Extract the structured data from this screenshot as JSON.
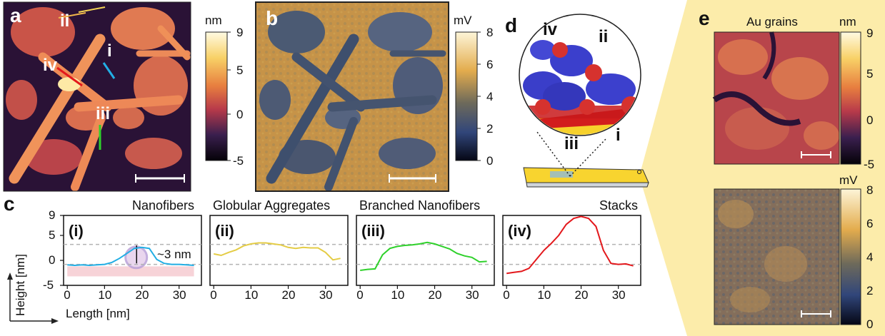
{
  "panels": {
    "a": {
      "letter": "a",
      "line_labels": [
        "ii",
        "i",
        "iv",
        "iii"
      ],
      "colorbar": {
        "unit": "nm",
        "ticks": [
          "9",
          "5",
          "0",
          "-5"
        ]
      }
    },
    "b": {
      "letter": "b",
      "colorbar": {
        "unit": "mV",
        "ticks": [
          "8",
          "6",
          "4",
          "2",
          "0"
        ]
      }
    },
    "c": {
      "letter": "c",
      "ylabel": "Height [nm]",
      "xlabel": "Length [nm]",
      "y_ticks": [
        "9",
        "5",
        "0",
        "-5"
      ],
      "x_ticks": [
        "0",
        "10",
        "20",
        "30"
      ],
      "annotation": "~3 nm",
      "plots": [
        {
          "roman": "(i)",
          "title": "Nanofibers"
        },
        {
          "roman": "(ii)",
          "title": "Globular Aggregates"
        },
        {
          "roman": "(iii)",
          "title": "Branched Nanofibers"
        },
        {
          "roman": "(iv)",
          "title": "Stacks"
        }
      ]
    },
    "d": {
      "letter": "d",
      "labels": [
        "iv",
        "ii",
        "iii",
        "i"
      ]
    },
    "e": {
      "letter": "e",
      "title": "Au grains",
      "colorbar_top": {
        "unit": "nm",
        "ticks": [
          "9",
          "5",
          "0",
          "-5"
        ]
      },
      "colorbar_bottom": {
        "unit": "mV",
        "ticks": [
          "8",
          "6",
          "4",
          "2",
          "0"
        ]
      }
    }
  },
  "colors": {
    "profile_i": "#22aee4",
    "profile_ii": "#e4cc45",
    "profile_iii": "#2fd12b",
    "profile_iv": "#e3181c",
    "inset_background": "#fbe9a8",
    "gold_substrate": "#f6cd2c",
    "frame_red": "#d6322e",
    "frame_blue": "#3a3ec9"
  },
  "chart_data": [
    {
      "type": "line",
      "title": "Nanofibers",
      "xlabel": "Length [nm]",
      "ylabel": "Height [nm]",
      "xlim": [
        -1,
        36
      ],
      "ylim": [
        -5,
        9
      ],
      "reference_lines": [
        -0.8,
        3.2
      ],
      "x": [
        0,
        2,
        4,
        6,
        8,
        10,
        12,
        14,
        16,
        18,
        20,
        22,
        24,
        26,
        28,
        30,
        32,
        34
      ],
      "y": [
        -0.9,
        -1.0,
        -0.9,
        -1.0,
        -0.9,
        -0.8,
        -0.4,
        0.4,
        1.4,
        2.4,
        2.6,
        2.4,
        0.2,
        -0.6,
        -0.8,
        -0.8,
        -0.9,
        -1.0
      ]
    },
    {
      "type": "line",
      "title": "Globular Aggregates",
      "xlabel": "",
      "ylabel": "",
      "xlim": [
        -1,
        36
      ],
      "ylim": [
        -5,
        9
      ],
      "reference_lines": [
        -0.8,
        3.2
      ],
      "x": [
        0,
        2,
        4,
        6,
        8,
        10,
        12,
        14,
        16,
        18,
        20,
        22,
        24,
        26,
        28,
        30,
        32,
        34
      ],
      "y": [
        1.3,
        1.0,
        1.6,
        2.1,
        2.9,
        3.3,
        3.5,
        3.5,
        3.3,
        3.1,
        2.6,
        2.4,
        2.6,
        2.5,
        2.5,
        1.6,
        0.1,
        0.4
      ]
    },
    {
      "type": "line",
      "title": "Branched Nanofibers",
      "xlabel": "",
      "ylabel": "",
      "xlim": [
        -1,
        36
      ],
      "ylim": [
        -5,
        9
      ],
      "reference_lines": [
        -0.8,
        3.2
      ],
      "x": [
        0,
        2,
        4,
        6,
        8,
        10,
        12,
        14,
        16,
        18,
        20,
        22,
        24,
        26,
        28,
        30,
        32,
        34
      ],
      "y": [
        -2.0,
        -1.8,
        -1.7,
        1.1,
        2.4,
        2.8,
        3.0,
        3.1,
        3.3,
        3.6,
        3.3,
        2.8,
        2.3,
        1.4,
        0.9,
        0.6,
        -0.3,
        -0.2
      ]
    },
    {
      "type": "line",
      "title": "Stacks",
      "xlabel": "",
      "ylabel": "",
      "xlim": [
        -1,
        36
      ],
      "ylim": [
        -5,
        9
      ],
      "reference_lines": [
        -0.8,
        3.2
      ],
      "x": [
        0,
        2,
        4,
        6,
        8,
        10,
        12,
        14,
        16,
        18,
        20,
        22,
        24,
        26,
        28,
        30,
        32,
        34
      ],
      "y": [
        -2.6,
        -2.4,
        -2.2,
        -1.6,
        0.2,
        2.0,
        3.4,
        5.0,
        7.2,
        8.4,
        8.8,
        8.4,
        6.8,
        2.0,
        -0.6,
        -0.8,
        -0.7,
        -1.1
      ]
    }
  ]
}
